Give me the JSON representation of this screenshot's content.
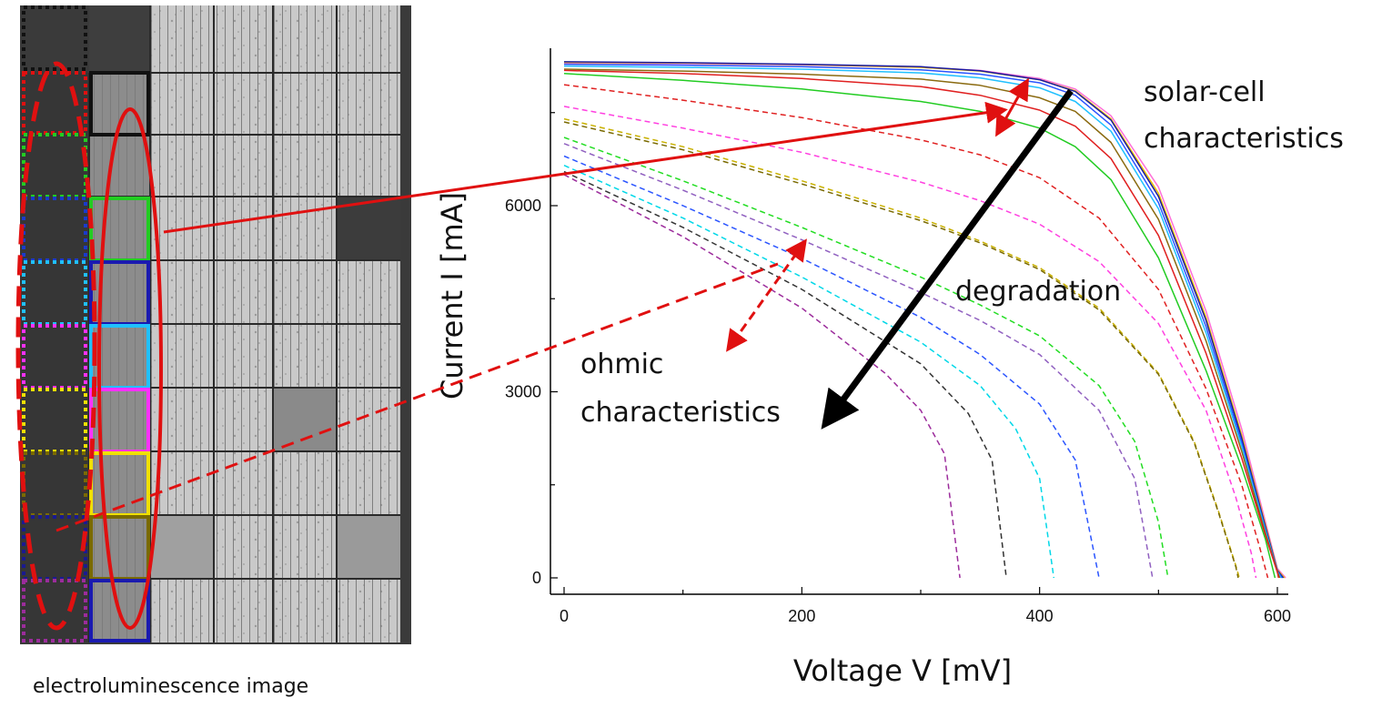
{
  "caption": "electroluminescence image",
  "chart_data": {
    "type": "line",
    "xlabel": "Voltage V [mV]",
    "ylabel": "Current I [mA]",
    "xlim": [
      0,
      610
    ],
    "ylim": [
      -300,
      8500
    ],
    "xticks": [
      0,
      200,
      400,
      600
    ],
    "yticks": [
      0,
      3000,
      6000
    ],
    "grid": false,
    "legend": "none",
    "annotations": [
      "solar-cell characteristics",
      "degradation",
      "ohmic characteristics"
    ],
    "series": [
      {
        "color": "#ff6fd8",
        "style": "solid",
        "x": [
          0,
          100,
          200,
          300,
          350,
          400,
          430,
          460,
          500,
          540,
          570,
          590,
          600,
          607
        ],
        "y": [
          8300,
          8290,
          8270,
          8230,
          8180,
          8050,
          7880,
          7450,
          6300,
          4300,
          2400,
          900,
          150,
          0
        ]
      },
      {
        "color": "#e8c000",
        "style": "solid",
        "x": [
          0,
          100,
          200,
          300,
          350,
          400,
          430,
          460,
          500,
          540,
          570,
          590,
          600,
          606
        ],
        "y": [
          8310,
          8300,
          8275,
          8230,
          8170,
          8030,
          7850,
          7400,
          6200,
          4200,
          2300,
          850,
          130,
          0
        ]
      },
      {
        "color": "#1a1aa0",
        "style": "solid",
        "x": [
          0,
          100,
          200,
          300,
          350,
          400,
          430,
          460,
          500,
          540,
          570,
          590,
          600,
          605
        ],
        "y": [
          8320,
          8305,
          8280,
          8240,
          8175,
          8030,
          7840,
          7380,
          6150,
          4150,
          2250,
          820,
          120,
          0
        ]
      },
      {
        "color": "#2b55ff",
        "style": "solid",
        "x": [
          0,
          100,
          200,
          300,
          350,
          400,
          430,
          460,
          500,
          540,
          570,
          590,
          600,
          604
        ],
        "y": [
          8280,
          8265,
          8240,
          8190,
          8120,
          7980,
          7780,
          7300,
          6050,
          4050,
          2180,
          780,
          110,
          0
        ]
      },
      {
        "color": "#20c0ff",
        "style": "solid",
        "x": [
          0,
          100,
          200,
          300,
          350,
          400,
          430,
          460,
          500,
          540,
          570,
          590,
          600,
          603
        ],
        "y": [
          8250,
          8230,
          8200,
          8140,
          8060,
          7900,
          7680,
          7200,
          5950,
          3950,
          2120,
          760,
          100,
          0
        ]
      },
      {
        "color": "#8a6a10",
        "style": "solid",
        "x": [
          0,
          100,
          200,
          300,
          350,
          400,
          430,
          460,
          500,
          540,
          570,
          590,
          600,
          602
        ],
        "y": [
          8200,
          8170,
          8120,
          8040,
          7940,
          7740,
          7520,
          7020,
          5780,
          3820,
          2040,
          720,
          100,
          0
        ]
      },
      {
        "color": "#e02020",
        "style": "solid",
        "x": [
          0,
          100,
          200,
          300,
          350,
          400,
          430,
          460,
          500,
          540,
          570,
          590,
          600,
          601
        ],
        "y": [
          8180,
          8130,
          8050,
          7920,
          7780,
          7540,
          7280,
          6760,
          5520,
          3620,
          1930,
          680,
          90,
          0
        ]
      },
      {
        "color": "#22cc22",
        "style": "solid",
        "x": [
          0,
          100,
          200,
          300,
          350,
          400,
          430,
          460,
          500,
          540,
          570,
          590,
          598
        ],
        "y": [
          8130,
          8020,
          7880,
          7680,
          7520,
          7250,
          6950,
          6420,
          5160,
          3340,
          1780,
          620,
          0
        ]
      },
      {
        "color": "#e02020",
        "style": "dashed",
        "x": [
          0,
          100,
          200,
          300,
          350,
          400,
          450,
          500,
          540,
          570,
          585,
          592
        ],
        "y": [
          7950,
          7700,
          7420,
          7060,
          6820,
          6450,
          5800,
          4650,
          3050,
          1500,
          500,
          0
        ]
      },
      {
        "color": "#ff40e0",
        "style": "dashed",
        "x": [
          0,
          100,
          200,
          300,
          350,
          400,
          450,
          500,
          540,
          565,
          578,
          582
        ],
        "y": [
          7600,
          7250,
          6860,
          6380,
          6080,
          5700,
          5100,
          4100,
          2700,
          1300,
          400,
          0
        ]
      },
      {
        "color": "#c8b000",
        "style": "dashed",
        "x": [
          0,
          100,
          200,
          300,
          350,
          400,
          450,
          500,
          530,
          550,
          565,
          568
        ],
        "y": [
          7400,
          6950,
          6400,
          5800,
          5430,
          5000,
          4350,
          3300,
          2200,
          1100,
          200,
          0
        ]
      },
      {
        "color": "#7a6a00",
        "style": "dashed",
        "x": [
          0,
          100,
          200,
          300,
          350,
          400,
          450,
          500,
          530,
          550,
          565,
          567
        ],
        "y": [
          7350,
          6900,
          6350,
          5760,
          5400,
          4970,
          4320,
          3280,
          2180,
          1080,
          180,
          0
        ]
      },
      {
        "color": "#22dd22",
        "style": "dashed",
        "x": [
          0,
          100,
          200,
          300,
          350,
          400,
          450,
          480,
          500,
          508
        ],
        "y": [
          7100,
          6400,
          5650,
          4850,
          4400,
          3900,
          3100,
          2200,
          900,
          0
        ]
      },
      {
        "color": "#9060c0",
        "style": "dashed",
        "x": [
          0,
          100,
          200,
          300,
          350,
          400,
          450,
          480,
          495
        ],
        "y": [
          7000,
          6250,
          5450,
          4600,
          4150,
          3600,
          2700,
          1600,
          0
        ]
      },
      {
        "color": "#2b55ff",
        "style": "dashed",
        "x": [
          0,
          100,
          200,
          300,
          350,
          400,
          430,
          450
        ],
        "y": [
          6800,
          6000,
          5150,
          4200,
          3600,
          2800,
          1900,
          0
        ]
      },
      {
        "color": "#00d8e8",
        "style": "dashed",
        "x": [
          0,
          100,
          200,
          300,
          350,
          380,
          400,
          412
        ],
        "y": [
          6650,
          5800,
          4850,
          3800,
          3100,
          2400,
          1600,
          0
        ]
      },
      {
        "color": "#333333",
        "style": "dashed",
        "x": [
          0,
          100,
          200,
          300,
          340,
          360,
          372
        ],
        "y": [
          6550,
          5650,
          4650,
          3450,
          2650,
          1900,
          0
        ]
      },
      {
        "color": "#9c2c9c",
        "style": "dashed",
        "x": [
          0,
          100,
          200,
          270,
          300,
          320,
          333
        ],
        "y": [
          6500,
          5500,
          4350,
          3300,
          2700,
          2000,
          0
        ]
      }
    ]
  }
}
